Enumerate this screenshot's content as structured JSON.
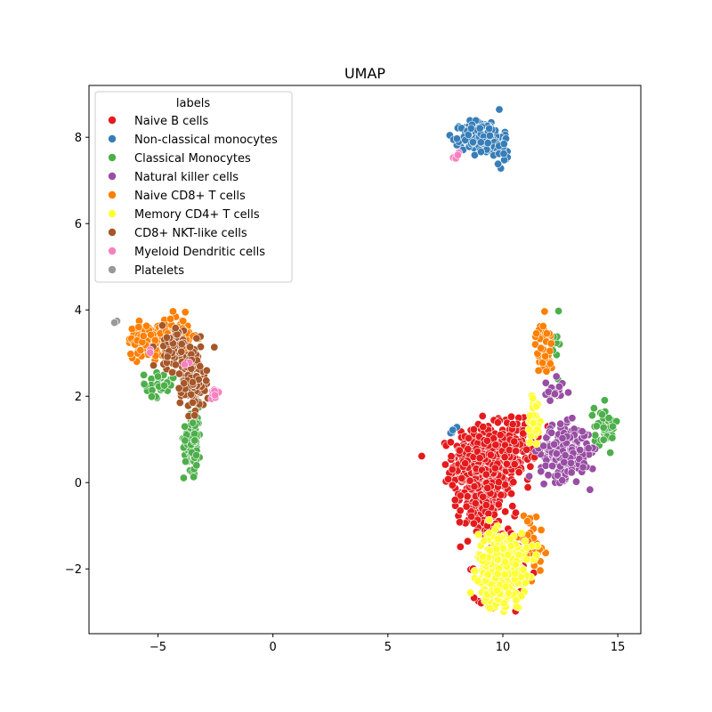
{
  "chart_data": {
    "type": "scatter",
    "title": "UMAP",
    "xlabel": "",
    "ylabel": "",
    "xlim": [
      -8.0,
      16.0
    ],
    "ylim": [
      -3.5,
      9.2
    ],
    "xticks": [
      -5,
      0,
      5,
      10,
      15
    ],
    "xtick_labels": [
      "−5",
      "0",
      "5",
      "10",
      "15"
    ],
    "yticks": [
      -2,
      0,
      2,
      4,
      6,
      8
    ],
    "ytick_labels": [
      "−2",
      "0",
      "2",
      "4",
      "6",
      "8"
    ],
    "grid": false,
    "legend": {
      "title": "labels",
      "placement": "top-left"
    },
    "series": [
      {
        "name": "Naive B cells",
        "color": "#e41a1c",
        "clusters": [
          {
            "cx": 9.2,
            "cy": 0.4,
            "sx": 0.9,
            "sy": 0.6,
            "n": 520
          },
          {
            "cx": 10.6,
            "cy": 0.9,
            "sx": 0.6,
            "sy": 0.4,
            "n": 120
          },
          {
            "cx": 9.0,
            "cy": -0.7,
            "sx": 0.6,
            "sy": 0.35,
            "n": 90
          },
          {
            "cx": 10.0,
            "cy": -1.8,
            "sx": 0.8,
            "sy": 0.6,
            "n": 120
          }
        ]
      },
      {
        "name": "Non-classical monocytes",
        "color": "#377eb8",
        "clusters": [
          {
            "cx": 9.1,
            "cy": 8.0,
            "sx": 0.6,
            "sy": 0.25,
            "n": 240
          },
          {
            "cx": 10.0,
            "cy": 7.6,
            "sx": 0.2,
            "sy": 0.2,
            "n": 20
          },
          {
            "cx": 7.9,
            "cy": 1.2,
            "sx": 0.15,
            "sy": 0.1,
            "n": 4
          }
        ]
      },
      {
        "name": "Classical Monocytes",
        "color": "#4daf4a",
        "clusters": [
          {
            "cx": -3.5,
            "cy": 1.0,
            "sx": 0.25,
            "sy": 0.5,
            "n": 90
          },
          {
            "cx": -5.0,
            "cy": 2.3,
            "sx": 0.45,
            "sy": 0.2,
            "n": 40
          },
          {
            "cx": 14.5,
            "cy": 1.3,
            "sx": 0.35,
            "sy": 0.35,
            "n": 45
          },
          {
            "cx": 12.3,
            "cy": 3.2,
            "sx": 0.15,
            "sy": 0.4,
            "n": 10
          }
        ]
      },
      {
        "name": "Natural killer  cells",
        "color": "#984ea3",
        "clusters": [
          {
            "cx": 12.7,
            "cy": 0.7,
            "sx": 0.7,
            "sy": 0.4,
            "n": 230
          },
          {
            "cx": 12.2,
            "cy": 2.1,
            "sx": 0.3,
            "sy": 0.2,
            "n": 20
          }
        ]
      },
      {
        "name": "Naive CD8+ T cells",
        "color": "#ff7f00",
        "clusters": [
          {
            "cx": -5.4,
            "cy": 3.3,
            "sx": 0.6,
            "sy": 0.25,
            "n": 150
          },
          {
            "cx": -4.0,
            "cy": 3.5,
            "sx": 0.4,
            "sy": 0.25,
            "n": 50
          },
          {
            "cx": 11.8,
            "cy": 3.1,
            "sx": 0.25,
            "sy": 0.4,
            "n": 50
          },
          {
            "cx": 11.2,
            "cy": -1.4,
            "sx": 0.4,
            "sy": 0.5,
            "n": 40
          }
        ]
      },
      {
        "name": "Memory CD4+ T cells",
        "color": "#ffff33",
        "clusters": [
          {
            "cx": 10.0,
            "cy": -1.9,
            "sx": 0.7,
            "sy": 0.5,
            "n": 360
          },
          {
            "cx": 9.8,
            "cy": -2.6,
            "sx": 0.4,
            "sy": 0.2,
            "n": 60
          },
          {
            "cx": 11.4,
            "cy": 1.5,
            "sx": 0.2,
            "sy": 0.5,
            "n": 30
          }
        ]
      },
      {
        "name": "CD8+ NKT-like cells",
        "color": "#a65628",
        "clusters": [
          {
            "cx": -3.5,
            "cy": 2.4,
            "sx": 0.35,
            "sy": 0.45,
            "n": 170
          },
          {
            "cx": -4.4,
            "cy": 3.1,
            "sx": 0.35,
            "sy": 0.3,
            "n": 70
          }
        ]
      },
      {
        "name": "Myeloid Dendritic cells",
        "color": "#f781bf",
        "clusters": [
          {
            "cx": 8.0,
            "cy": 7.55,
            "sx": 0.15,
            "sy": 0.08,
            "n": 5
          },
          {
            "cx": -2.5,
            "cy": 2.1,
            "sx": 0.2,
            "sy": 0.12,
            "n": 10
          },
          {
            "cx": -3.8,
            "cy": 2.75,
            "sx": 0.1,
            "sy": 0.05,
            "n": 2
          },
          {
            "cx": -5.3,
            "cy": 3.0,
            "sx": 0.1,
            "sy": 0.05,
            "n": 2
          }
        ]
      },
      {
        "name": "Platelets",
        "color": "#999999",
        "clusters": [
          {
            "cx": -6.8,
            "cy": 3.72,
            "sx": 0.05,
            "sy": 0.05,
            "n": 4
          }
        ]
      }
    ]
  }
}
